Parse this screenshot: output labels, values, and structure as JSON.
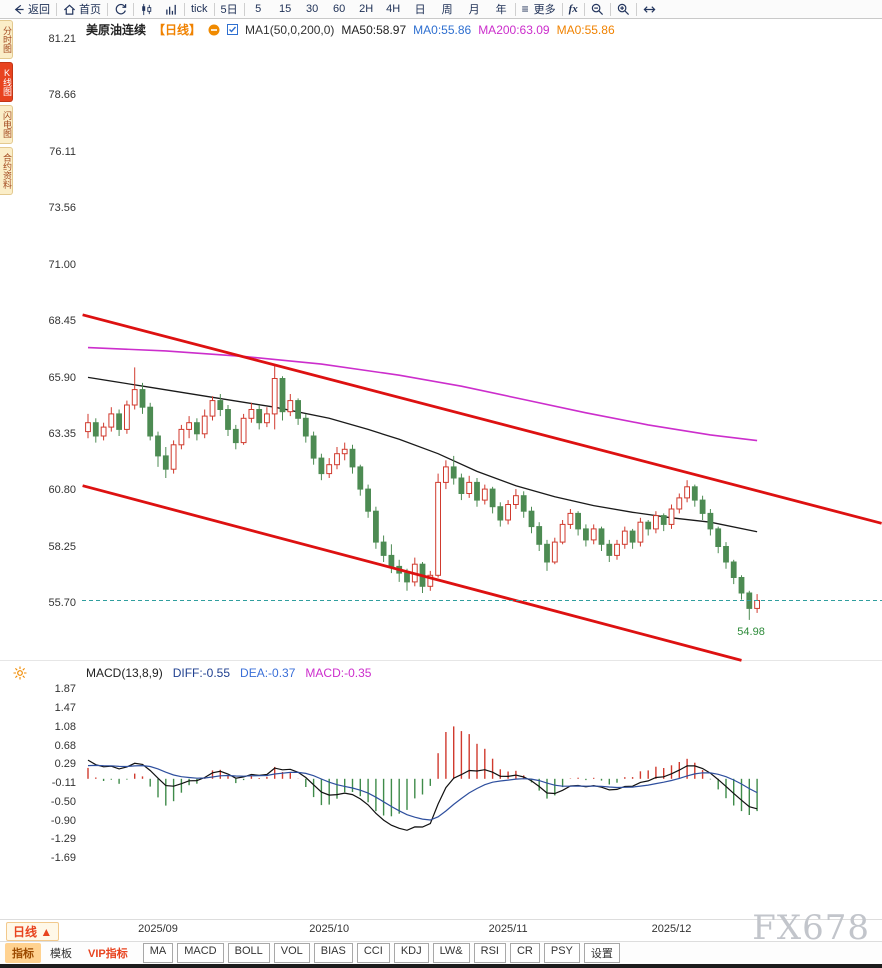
{
  "toolbar": {
    "back_label": "返回",
    "home_label": "首页",
    "tick_label": "tick",
    "five_day_label": "5日",
    "periods": [
      {
        "label": "5",
        "name": "5min"
      },
      {
        "label": "15",
        "name": "15min"
      },
      {
        "label": "30",
        "name": "30min"
      },
      {
        "label": "60",
        "name": "60min"
      },
      {
        "label": "2H",
        "name": "2h"
      },
      {
        "label": "4H",
        "name": "4h"
      },
      {
        "label": "日",
        "name": "day"
      },
      {
        "label": "周",
        "name": "week"
      },
      {
        "label": "月",
        "name": "month"
      },
      {
        "label": "年",
        "name": "year"
      }
    ],
    "more_label": "更多",
    "fx_label": "fx"
  },
  "sidebar": {
    "items": [
      {
        "label": "分时图",
        "name": "time-chart",
        "active": false
      },
      {
        "label": "K线图",
        "name": "kline-chart",
        "active": true
      },
      {
        "label": "闪电图",
        "name": "lightning-chart",
        "active": false
      },
      {
        "label": "合约资料",
        "name": "contract-info",
        "active": false
      }
    ]
  },
  "chart_header": {
    "symbol": "美原油连续",
    "period_tag": "【日线】",
    "ma_params": "MA1(50,0,200,0)",
    "ma50_label": "MA50:58.97",
    "ma0_label": "MA0:55.86",
    "ma200_label": "MA200:63.09",
    "ma0b_label": "MA0:55.86"
  },
  "macd_header": {
    "title": "MACD(13,8,9)",
    "diff": "DIFF:-0.55",
    "dea": "DEA:-0.37",
    "macd": "MACD:-0.35"
  },
  "bottom": {
    "period_tab": "日线 ▲",
    "tabs": [
      {
        "label": "指标",
        "name": "indicators-tab"
      },
      {
        "label": "模板",
        "name": "templates-tab"
      },
      {
        "label": "VIP指标",
        "name": "vip-indicators-tab"
      }
    ],
    "indicators": [
      {
        "label": "MA",
        "name": "ma"
      },
      {
        "label": "MACD",
        "name": "macd"
      },
      {
        "label": "BOLL",
        "name": "boll"
      },
      {
        "label": "VOL",
        "name": "vol"
      },
      {
        "label": "BIAS",
        "name": "bias"
      },
      {
        "label": "CCI",
        "name": "cci"
      },
      {
        "label": "KDJ",
        "name": "kdj"
      },
      {
        "label": "LW&",
        "name": "lwr"
      },
      {
        "label": "RSI",
        "name": "rsi"
      },
      {
        "label": "CR",
        "name": "cr"
      },
      {
        "label": "PSY",
        "name": "psy"
      },
      {
        "label": "设置",
        "name": "settings"
      }
    ]
  },
  "watermark": "FX678",
  "colors": {
    "up": "#d03a2e",
    "down": "#4d8b53",
    "trend": "#dd1111",
    "ma50": "#1a1a1a",
    "ma200": "#cc2ecc",
    "price_line": "#2f9e9e",
    "low_label": "#2e8b3a",
    "macd_pos": "#d03a2e",
    "macd_neg": "#3f8b4a",
    "diff_line": "#111111",
    "dea_line": "#2e4f9e"
  },
  "chart_data": {
    "type": "candlestick",
    "title": "美原油连续 日线",
    "y_axis_ticks": [
      81.21,
      78.66,
      76.11,
      73.56,
      71.0,
      68.45,
      65.9,
      63.35,
      60.8,
      58.25,
      55.7
    ],
    "x_axis_ticks": [
      {
        "label": "2025/09",
        "index": 9
      },
      {
        "label": "2025/10",
        "index": 31
      },
      {
        "label": "2025/11",
        "index": 54
      },
      {
        "label": "2025/12",
        "index": 75
      }
    ],
    "last_price": 55.86,
    "low_annotation": {
      "index": 85,
      "price": 54.98,
      "label": "54.98"
    },
    "ma50_anchors": [
      [
        0,
        65.95
      ],
      [
        8,
        65.5
      ],
      [
        16,
        65.05
      ],
      [
        24,
        64.6
      ],
      [
        31,
        64.1
      ],
      [
        36,
        63.6
      ],
      [
        40,
        63.15
      ],
      [
        45,
        62.5
      ],
      [
        50,
        61.7
      ],
      [
        55,
        61.05
      ],
      [
        60,
        60.55
      ],
      [
        65,
        60.15
      ],
      [
        70,
        59.85
      ],
      [
        75,
        59.6
      ],
      [
        80,
        59.4
      ],
      [
        86,
        58.97
      ]
    ],
    "ma200_anchors": [
      [
        0,
        67.3
      ],
      [
        10,
        67.15
      ],
      [
        20,
        66.9
      ],
      [
        30,
        66.55
      ],
      [
        40,
        66.05
      ],
      [
        48,
        65.55
      ],
      [
        56,
        64.95
      ],
      [
        64,
        64.35
      ],
      [
        72,
        63.8
      ],
      [
        80,
        63.35
      ],
      [
        86,
        63.09
      ]
    ],
    "channel_lines": {
      "upper": [
        [
          -0.7,
          68.78
        ],
        [
          102,
          59.35
        ]
      ],
      "lower": [
        [
          -0.7,
          61.05
        ],
        [
          84,
          53.15
        ]
      ]
    },
    "candles_ohlc": [
      [
        63.5,
        64.3,
        63.2,
        63.9
      ],
      [
        63.9,
        64.1,
        63.0,
        63.3
      ],
      [
        63.3,
        63.9,
        63.1,
        63.7
      ],
      [
        63.7,
        64.6,
        63.5,
        64.3
      ],
      [
        64.3,
        64.5,
        63.3,
        63.6
      ],
      [
        63.6,
        64.9,
        63.4,
        64.7
      ],
      [
        64.7,
        66.4,
        64.5,
        65.4
      ],
      [
        65.4,
        65.7,
        64.3,
        64.6
      ],
      [
        64.6,
        64.8,
        63.1,
        63.3
      ],
      [
        63.3,
        63.5,
        61.9,
        62.4
      ],
      [
        62.4,
        62.8,
        61.4,
        61.8
      ],
      [
        61.8,
        63.1,
        61.6,
        62.9
      ],
      [
        62.9,
        63.8,
        62.7,
        63.6
      ],
      [
        63.6,
        64.2,
        63.2,
        63.9
      ],
      [
        63.9,
        64.1,
        63.1,
        63.4
      ],
      [
        63.4,
        64.5,
        63.2,
        64.2
      ],
      [
        64.2,
        65.1,
        64.0,
        64.9
      ],
      [
        64.9,
        65.2,
        64.2,
        64.5
      ],
      [
        64.5,
        64.7,
        63.3,
        63.6
      ],
      [
        63.6,
        63.8,
        62.7,
        63.0
      ],
      [
        63.0,
        64.3,
        62.9,
        64.1
      ],
      [
        64.1,
        64.8,
        63.9,
        64.5
      ],
      [
        64.5,
        64.7,
        63.6,
        63.9
      ],
      [
        63.9,
        64.6,
        63.7,
        64.3
      ],
      [
        64.3,
        66.5,
        63.6,
        65.9
      ],
      [
        65.9,
        66.0,
        64.0,
        64.4
      ],
      [
        64.4,
        65.2,
        64.2,
        64.9
      ],
      [
        64.9,
        65.0,
        63.8,
        64.1
      ],
      [
        64.1,
        64.3,
        63.0,
        63.3
      ],
      [
        63.3,
        63.5,
        62.0,
        62.3
      ],
      [
        62.3,
        62.5,
        61.3,
        61.6
      ],
      [
        61.6,
        62.3,
        61.4,
        62.0
      ],
      [
        62.0,
        62.8,
        61.8,
        62.5
      ],
      [
        62.5,
        63.0,
        62.2,
        62.7
      ],
      [
        62.7,
        62.9,
        61.6,
        61.9
      ],
      [
        61.9,
        62.0,
        60.6,
        60.9
      ],
      [
        60.9,
        61.1,
        59.6,
        59.9
      ],
      [
        59.9,
        60.1,
        58.2,
        58.5
      ],
      [
        58.5,
        58.8,
        57.6,
        57.9
      ],
      [
        57.9,
        58.4,
        57.1,
        57.4
      ],
      [
        57.4,
        57.7,
        56.7,
        57.1
      ],
      [
        57.1,
        57.3,
        56.3,
        56.7
      ],
      [
        56.7,
        57.8,
        56.5,
        57.5
      ],
      [
        57.5,
        57.6,
        56.2,
        56.5
      ],
      [
        56.5,
        57.2,
        56.3,
        57.0
      ],
      [
        57.0,
        61.6,
        56.9,
        61.2
      ],
      [
        61.2,
        62.2,
        60.9,
        61.9
      ],
      [
        61.9,
        62.4,
        61.1,
        61.4
      ],
      [
        61.4,
        61.6,
        60.4,
        60.7
      ],
      [
        60.7,
        61.5,
        60.5,
        61.2
      ],
      [
        61.2,
        61.4,
        60.1,
        60.4
      ],
      [
        60.4,
        61.1,
        60.2,
        60.9
      ],
      [
        60.9,
        61.0,
        59.8,
        60.1
      ],
      [
        60.1,
        60.3,
        59.2,
        59.5
      ],
      [
        59.5,
        60.4,
        59.3,
        60.2
      ],
      [
        60.2,
        60.9,
        60.0,
        60.6
      ],
      [
        60.6,
        60.8,
        59.6,
        59.9
      ],
      [
        59.9,
        60.1,
        58.9,
        59.2
      ],
      [
        59.2,
        59.4,
        58.1,
        58.4
      ],
      [
        58.4,
        58.6,
        57.2,
        57.6
      ],
      [
        57.6,
        58.7,
        57.5,
        58.5
      ],
      [
        58.5,
        59.5,
        58.4,
        59.3
      ],
      [
        59.3,
        60.0,
        59.1,
        59.8
      ],
      [
        59.8,
        59.9,
        58.8,
        59.1
      ],
      [
        59.1,
        59.3,
        58.3,
        58.6
      ],
      [
        58.6,
        59.3,
        58.4,
        59.1
      ],
      [
        59.1,
        59.2,
        58.1,
        58.4
      ],
      [
        58.4,
        58.6,
        57.6,
        57.9
      ],
      [
        57.9,
        58.6,
        57.7,
        58.4
      ],
      [
        58.4,
        59.2,
        58.2,
        59.0
      ],
      [
        59.0,
        59.1,
        58.2,
        58.5
      ],
      [
        58.5,
        59.6,
        58.3,
        59.4
      ],
      [
        59.4,
        59.5,
        58.8,
        59.1
      ],
      [
        59.1,
        59.9,
        58.9,
        59.7
      ],
      [
        59.7,
        59.8,
        59.0,
        59.3
      ],
      [
        59.3,
        60.2,
        59.1,
        60.0
      ],
      [
        60.0,
        60.7,
        59.8,
        60.5
      ],
      [
        60.5,
        61.3,
        60.3,
        61.0
      ],
      [
        61.0,
        61.1,
        60.1,
        60.4
      ],
      [
        60.4,
        60.6,
        59.5,
        59.8
      ],
      [
        59.8,
        60.0,
        58.8,
        59.1
      ],
      [
        59.1,
        59.2,
        58.0,
        58.3
      ],
      [
        58.3,
        58.5,
        57.3,
        57.6
      ],
      [
        57.6,
        57.7,
        56.6,
        56.9
      ],
      [
        56.9,
        57.0,
        55.9,
        56.2
      ],
      [
        56.2,
        56.3,
        54.98,
        55.5
      ],
      [
        55.5,
        56.15,
        55.3,
        55.86
      ]
    ],
    "macd": {
      "params": "(13,8,9)",
      "diff": -0.55,
      "dea": -0.37,
      "macd": -0.35,
      "y_axis_ticks": [
        1.87,
        1.47,
        1.08,
        0.68,
        0.29,
        -0.11,
        -0.5,
        -0.9,
        -1.29,
        -1.69
      ]
    }
  }
}
